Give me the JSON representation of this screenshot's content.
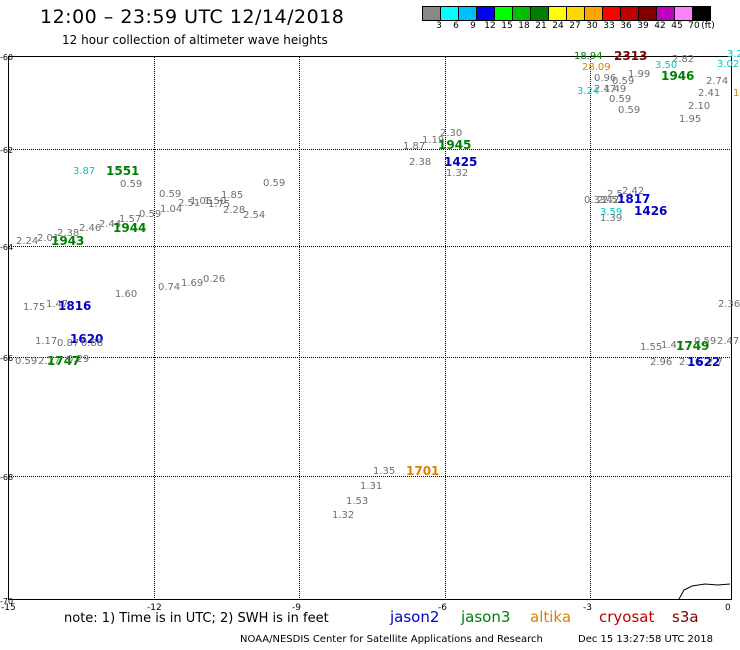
{
  "title": "12:00 – 23:59 UTC 12/14/2018",
  "subtitle": "12 hour collection of altimeter wave heights",
  "legend": {
    "colors": [
      "#888888",
      "#00ffff",
      "#00bfff",
      "#0000ff",
      "#00ff00",
      "#00c000",
      "#008000",
      "#ffff00",
      "#ffd700",
      "#ffa500",
      "#ff0000",
      "#c00000",
      "#800000",
      "#c000c0",
      "#ff80ff",
      "#000000"
    ],
    "labels": [
      "3",
      "6",
      "9",
      "12",
      "15",
      "18",
      "21",
      "24",
      "27",
      "30",
      "33",
      "36",
      "39",
      "42",
      "45",
      "70"
    ],
    "unit": "(ft)"
  },
  "axes": {
    "y_labels": [
      "-60",
      "-62",
      "-64",
      "-66",
      "-68",
      "-70"
    ],
    "x_labels": [
      "-15",
      "-12",
      "-9",
      "-6",
      "-3",
      "0"
    ]
  },
  "points": [
    {
      "t": "18.94",
      "c": "#008000",
      "k": "val"
    },
    {
      "t": "2313",
      "c": "#800000",
      "k": "time"
    },
    {
      "t": "2.82",
      "c": "#6e6e6e",
      "k": "val"
    },
    {
      "t": "3.2",
      "c": "#00c8c8",
      "k": "val"
    },
    {
      "t": "28.09",
      "c": "#e08000",
      "k": "val"
    },
    {
      "t": "3.50",
      "c": "#00c8c8",
      "k": "val"
    },
    {
      "t": "3.02",
      "c": "#00c8c8",
      "k": "val"
    },
    {
      "t": "0.96",
      "c": "#6e6e6e",
      "k": "val"
    },
    {
      "t": "1.99",
      "c": "#6e6e6e",
      "k": "val"
    },
    {
      "t": "1946",
      "c": "#008000",
      "k": "time"
    },
    {
      "t": "0.59",
      "c": "#6e6e6e",
      "k": "val"
    },
    {
      "t": "2.74",
      "c": "#6e6e6e",
      "k": "val"
    },
    {
      "t": "2.47",
      "c": "#6e6e6e",
      "k": "val"
    },
    {
      "t": "3.24",
      "c": "#00c8c8",
      "k": "val"
    },
    {
      "t": "1.49",
      "c": "#6e6e6e",
      "k": "val"
    },
    {
      "t": "2.41",
      "c": "#6e6e6e",
      "k": "val"
    },
    {
      "t": "1",
      "c": "#e08000",
      "k": "val"
    },
    {
      "t": "0.59",
      "c": "#6e6e6e",
      "k": "val"
    },
    {
      "t": "2.10",
      "c": "#6e6e6e",
      "k": "val"
    },
    {
      "t": "0.59",
      "c": "#6e6e6e",
      "k": "val"
    },
    {
      "t": "1.95",
      "c": "#6e6e6e",
      "k": "val"
    },
    {
      "t": "2.30",
      "c": "#6e6e6e",
      "k": "val"
    },
    {
      "t": "1.19",
      "c": "#6e6e6e",
      "k": "val"
    },
    {
      "t": "1.87",
      "c": "#6e6e6e",
      "k": "val"
    },
    {
      "t": "1945",
      "c": "#008000",
      "k": "time"
    },
    {
      "t": "2.38",
      "c": "#6e6e6e",
      "k": "val"
    },
    {
      "t": "1425",
      "c": "#0000c8",
      "k": "time"
    },
    {
      "t": "1.32",
      "c": "#6e6e6e",
      "k": "val"
    },
    {
      "t": "3.87",
      "c": "#00c8c8",
      "k": "val"
    },
    {
      "t": "1551",
      "c": "#008000",
      "k": "time"
    },
    {
      "t": "0.59",
      "c": "#6e6e6e",
      "k": "val"
    },
    {
      "t": "0.59",
      "c": "#6e6e6e",
      "k": "val"
    },
    {
      "t": "2.42",
      "c": "#6e6e6e",
      "k": "val"
    },
    {
      "t": "1.85",
      "c": "#6e6e6e",
      "k": "val"
    },
    {
      "t": "0.59",
      "c": "#6e6e6e",
      "k": "val"
    },
    {
      "t": "1.50",
      "c": "#6e6e6e",
      "k": "val"
    },
    {
      "t": "1.06",
      "c": "#6e6e6e",
      "k": "val"
    },
    {
      "t": "2.51",
      "c": "#6e6e6e",
      "k": "val"
    },
    {
      "t": "1.75",
      "c": "#6e6e6e",
      "k": "val"
    },
    {
      "t": "1.04",
      "c": "#6e6e6e",
      "k": "val"
    },
    {
      "t": "2.28",
      "c": "#6e6e6e",
      "k": "val"
    },
    {
      "t": "0.59",
      "c": "#6e6e6e",
      "k": "val"
    },
    {
      "t": "2.54",
      "c": "#6e6e6e",
      "k": "val"
    },
    {
      "t": "1.57",
      "c": "#6e6e6e",
      "k": "val"
    },
    {
      "t": "2.44",
      "c": "#6e6e6e",
      "k": "val"
    },
    {
      "t": "1944",
      "c": "#008000",
      "k": "time"
    },
    {
      "t": "2.46",
      "c": "#6e6e6e",
      "k": "val"
    },
    {
      "t": "2.38",
      "c": "#6e6e6e",
      "k": "val"
    },
    {
      "t": "2.01",
      "c": "#6e6e6e",
      "k": "val"
    },
    {
      "t": "2.24",
      "c": "#6e6e6e",
      "k": "val"
    },
    {
      "t": "1943",
      "c": "#008000",
      "k": "time"
    },
    {
      "t": "2.42",
      "c": "#6e6e6e",
      "k": "val"
    },
    {
      "t": "2.5",
      "c": "#6e6e6e",
      "k": "val"
    },
    {
      "t": "0.33",
      "c": "#6e6e6e",
      "k": "val"
    },
    {
      "t": "2.57",
      "c": "#6e6e6e",
      "k": "val"
    },
    {
      "t": "1817",
      "c": "#0000c8",
      "k": "time"
    },
    {
      "t": "3.59",
      "c": "#00c8c8",
      "k": "val"
    },
    {
      "t": "1426",
      "c": "#0000c8",
      "k": "time"
    },
    {
      "t": "1.39",
      "c": "#6e6e6e",
      "k": "val"
    },
    {
      "t": "1.60",
      "c": "#6e6e6e",
      "k": "val"
    },
    {
      "t": "0.74",
      "c": "#6e6e6e",
      "k": "val"
    },
    {
      "t": "1.69",
      "c": "#6e6e6e",
      "k": "val"
    },
    {
      "t": "0.26",
      "c": "#6e6e6e",
      "k": "val"
    },
    {
      "t": "1.75",
      "c": "#6e6e6e",
      "k": "val"
    },
    {
      "t": "1.47",
      "c": "#6e6e6e",
      "k": "val"
    },
    {
      "t": "1816",
      "c": "#0000c8",
      "k": "time"
    },
    {
      "t": "2.36",
      "c": "#6e6e6e",
      "k": "val"
    },
    {
      "t": "1.17",
      "c": "#6e6e6e",
      "k": "val"
    },
    {
      "t": "1620",
      "c": "#0000c8",
      "k": "time"
    },
    {
      "t": "0.87",
      "c": "#6e6e6e",
      "k": "val"
    },
    {
      "t": "0.88",
      "c": "#6e6e6e",
      "k": "val"
    },
    {
      "t": "1.55",
      "c": "#6e6e6e",
      "k": "val"
    },
    {
      "t": "1.47",
      "c": "#6e6e6e",
      "k": "val"
    },
    {
      "t": "1749",
      "c": "#008000",
      "k": "time"
    },
    {
      "t": "0.59",
      "c": "#6e6e6e",
      "k": "val"
    },
    {
      "t": "2.47",
      "c": "#6e6e6e",
      "k": "val"
    },
    {
      "t": "0.59",
      "c": "#6e6e6e",
      "k": "val"
    },
    {
      "t": "2.27",
      "c": "#6e6e6e",
      "k": "val"
    },
    {
      "t": "1747",
      "c": "#008000",
      "k": "time"
    },
    {
      "t": "0.29",
      "c": "#6e6e6e",
      "k": "val"
    },
    {
      "t": "2.96",
      "c": "#6e6e6e",
      "k": "val"
    },
    {
      "t": "2.16",
      "c": "#6e6e6e",
      "k": "val"
    },
    {
      "t": "1622",
      "c": "#0000c8",
      "k": "time"
    },
    {
      "t": "2.7",
      "c": "#6e6e6e",
      "k": "val"
    },
    {
      "t": "1.35",
      "c": "#6e6e6e",
      "k": "val"
    },
    {
      "t": "1701",
      "c": "#e08000",
      "k": "time"
    },
    {
      "t": "1.31",
      "c": "#6e6e6e",
      "k": "val"
    },
    {
      "t": "1.53",
      "c": "#6e6e6e",
      "k": "val"
    },
    {
      "t": "1.32",
      "c": "#6e6e6e",
      "k": "val"
    }
  ],
  "footer": {
    "note": "note:  1) Time is in UTC;  2) SWH is in feet",
    "missions": [
      {
        "name": "jason2",
        "color": "#0000c8"
      },
      {
        "name": "jason3",
        "color": "#008000"
      },
      {
        "name": "altika",
        "color": "#e08000"
      },
      {
        "name": "cryosat",
        "color": "#c00000"
      },
      {
        "name": "s3a",
        "color": "#800000"
      }
    ],
    "credit": "NOAA/NESDIS Center for Satellite Applications and Research",
    "timestamp": "Dec 15 13:27:58 UTC 2018"
  }
}
